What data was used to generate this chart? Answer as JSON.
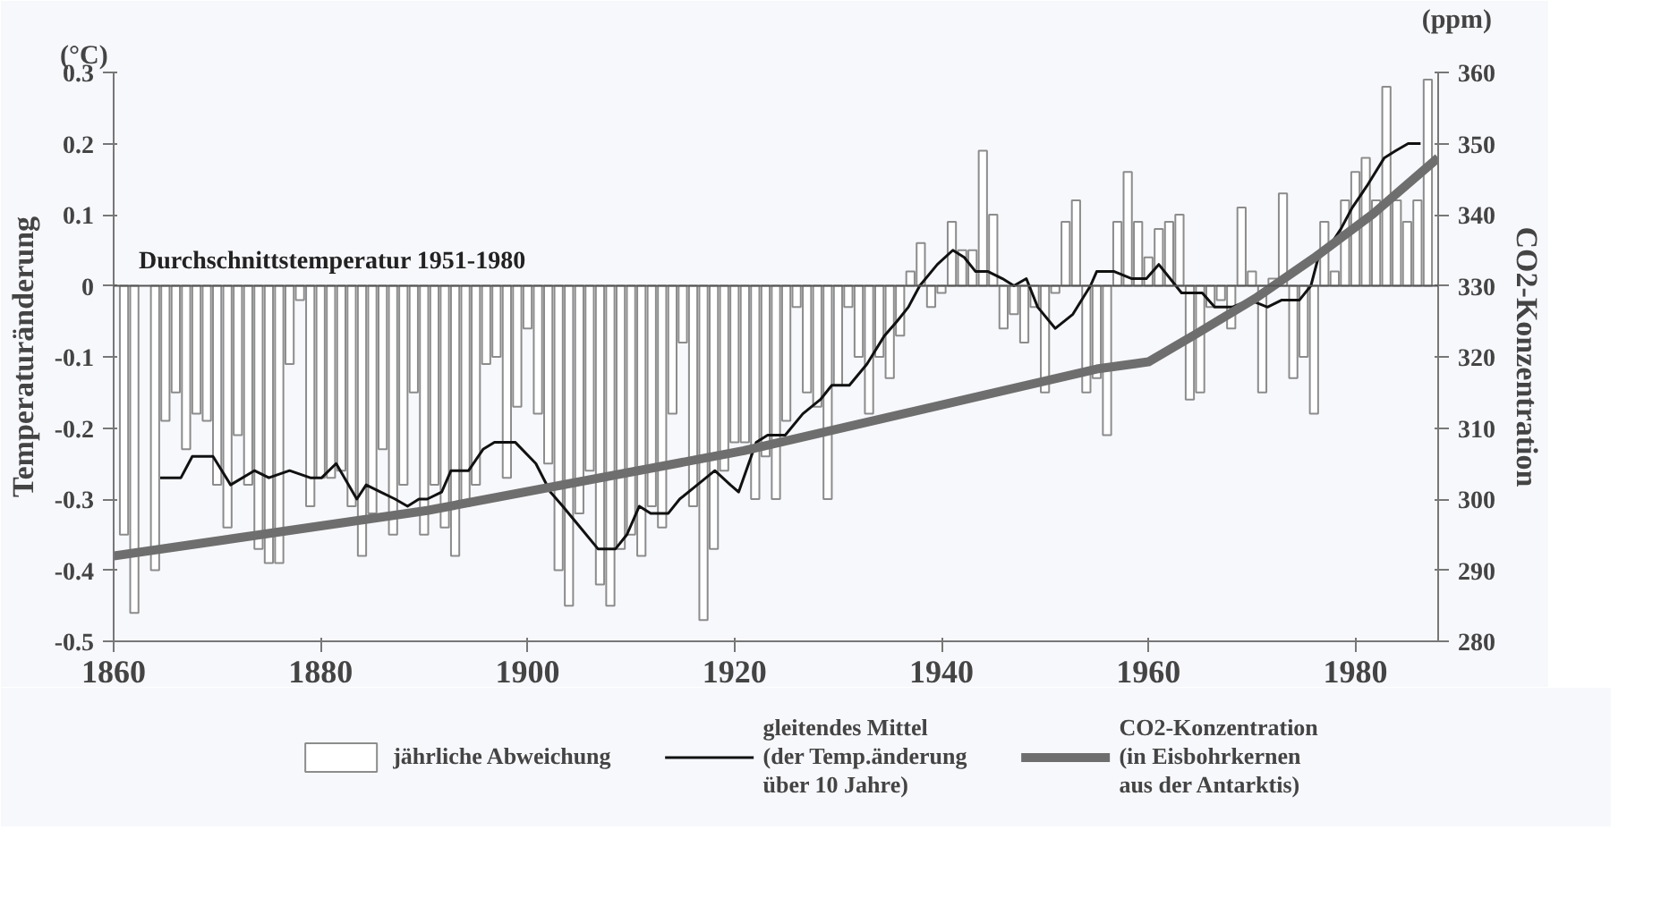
{
  "chart_data": {
    "type": "bar",
    "x": [
      1861,
      1862,
      1863,
      1864,
      1865,
      1866,
      1867,
      1868,
      1869,
      1870,
      1871,
      1872,
      1873,
      1874,
      1875,
      1876,
      1877,
      1878,
      1879,
      1880,
      1881,
      1882,
      1883,
      1884,
      1885,
      1886,
      1887,
      1888,
      1889,
      1890,
      1891,
      1892,
      1893,
      1894,
      1895,
      1896,
      1897,
      1898,
      1899,
      1900,
      1901,
      1902,
      1903,
      1904,
      1905,
      1906,
      1907,
      1908,
      1909,
      1910,
      1911,
      1912,
      1913,
      1914,
      1915,
      1916,
      1917,
      1918,
      1919,
      1920,
      1921,
      1922,
      1923,
      1924,
      1925,
      1926,
      1927,
      1928,
      1929,
      1930,
      1931,
      1932,
      1933,
      1934,
      1935,
      1936,
      1937,
      1938,
      1939,
      1940,
      1941,
      1942,
      1943,
      1944,
      1945,
      1946,
      1947,
      1948,
      1949,
      1950,
      1951,
      1952,
      1953,
      1954,
      1955,
      1956,
      1957,
      1958,
      1959,
      1960,
      1961,
      1962,
      1963,
      1964,
      1965,
      1966,
      1967,
      1968,
      1969,
      1970,
      1971,
      1972,
      1973,
      1974,
      1975,
      1976,
      1977,
      1978,
      1979,
      1980,
      1981,
      1982,
      1983,
      1984,
      1985,
      1986,
      1987
    ],
    "series": [
      {
        "name": "jährliche Abweichung",
        "color": "#8c8c8c",
        "values": [
          -0.35,
          -0.46,
          null,
          -0.4,
          -0.19,
          -0.15,
          -0.23,
          -0.18,
          -0.19,
          -0.28,
          -0.34,
          -0.21,
          -0.28,
          -0.37,
          -0.39,
          -0.39,
          -0.11,
          -0.02,
          -0.31,
          -0.27,
          -0.27,
          -0.26,
          -0.31,
          -0.38,
          -0.32,
          -0.23,
          -0.35,
          -0.28,
          -0.15,
          -0.35,
          -0.28,
          -0.34,
          -0.38,
          -0.31,
          -0.28,
          -0.11,
          -0.1,
          -0.27,
          -0.17,
          -0.06,
          -0.18,
          -0.25,
          -0.4,
          -0.45,
          -0.32,
          -0.26,
          -0.42,
          -0.45,
          -0.37,
          -0.35,
          -0.38,
          -0.31,
          -0.34,
          -0.18,
          -0.08,
          -0.31,
          -0.47,
          -0.37,
          -0.26,
          -0.22,
          -0.22,
          -0.3,
          -0.24,
          -0.3,
          -0.19,
          -0.03,
          -0.15,
          -0.17,
          -0.3,
          -0.14,
          -0.03,
          -0.1,
          -0.18,
          -0.1,
          -0.13,
          -0.07,
          0.02,
          0.06,
          -0.03,
          -0.01,
          0.09,
          0.05,
          0.05,
          0.19,
          0.1,
          -0.06,
          -0.04,
          -0.08,
          -0.03,
          -0.15,
          -0.01,
          0.09,
          0.12,
          -0.15,
          -0.13,
          -0.21,
          0.09,
          0.16,
          0.09,
          0.04,
          0.08,
          0.09,
          0.1,
          -0.16,
          -0.15,
          -0.03,
          -0.02,
          -0.06,
          0.11,
          0.02,
          -0.15,
          0.01,
          0.13,
          -0.13,
          -0.1,
          -0.18,
          0.09,
          0.02,
          0.12,
          0.16,
          0.18,
          0.12,
          0.28,
          0.12,
          0.09,
          0.12,
          0.29
        ]
      },
      {
        "name": "gleitendes Mittel\n(der Temp.änderung\nüber 10 Jahre)",
        "type": "line",
        "color": "#111111",
        "x": [
          1864.5,
          1866.5,
          1867.6,
          1869.6,
          1871.3,
          1873.6,
          1875,
          1877,
          1879,
          1880.1,
          1881.5,
          1883.5,
          1884.4,
          1885.8,
          1887.2,
          1888.4,
          1889.5,
          1890.3,
          1891.7,
          1892.6,
          1894.3,
          1895.7,
          1896.8,
          1898.8,
          1900.8,
          1902.2,
          1903.4,
          1905.1,
          1906.8,
          1908.5,
          1909.6,
          1910.8,
          1911.9,
          1913.6,
          1914.7,
          1916.4,
          1918.1,
          1919.6,
          1920.4,
          1922.1,
          1923.2,
          1924.9,
          1926.6,
          1928.3,
          1929.4,
          1931.1,
          1932.8,
          1934.5,
          1935.7,
          1936.8,
          1937.9,
          1939.6,
          1941.1,
          1942.2,
          1943.3,
          1944.5,
          1945.9,
          1947.0,
          1948.2,
          1949.3,
          1951.0,
          1952.7,
          1954.4,
          1955.0,
          1956.7,
          1958.4,
          1959.8,
          1961.0,
          1962.1,
          1963.2,
          1965.2,
          1966.4,
          1968.1,
          1969.8,
          1971.5,
          1972.9,
          1974.6,
          1975.7,
          1976.6,
          1977.7,
          1978.6,
          1979.7,
          1981.1,
          1982.8,
          1983.9,
          1985.1,
          1986.3
        ],
        "values": [
          -0.27,
          -0.27,
          -0.24,
          -0.24,
          -0.28,
          -0.26,
          -0.27,
          -0.26,
          -0.27,
          -0.27,
          -0.25,
          -0.3,
          -0.28,
          -0.29,
          -0.3,
          -0.31,
          -0.3,
          -0.3,
          -0.29,
          -0.26,
          -0.26,
          -0.23,
          -0.22,
          -0.22,
          -0.25,
          -0.29,
          -0.31,
          -0.34,
          -0.37,
          -0.37,
          -0.35,
          -0.31,
          -0.32,
          -0.32,
          -0.3,
          -0.28,
          -0.26,
          -0.28,
          -0.29,
          -0.22,
          -0.21,
          -0.21,
          -0.18,
          -0.16,
          -0.14,
          -0.14,
          -0.11,
          -0.07,
          -0.05,
          -0.03,
          0.0,
          0.03,
          0.05,
          0.04,
          0.02,
          0.02,
          0.01,
          0.0,
          0.01,
          -0.03,
          -0.06,
          -0.04,
          0.0,
          0.02,
          0.02,
          0.01,
          0.01,
          0.03,
          0.01,
          -0.01,
          -0.01,
          -0.03,
          -0.03,
          -0.02,
          -0.03,
          -0.02,
          -0.02,
          0.0,
          0.05,
          0.06,
          0.08,
          0.11,
          0.14,
          0.18,
          0.19,
          0.2,
          0.2
        ]
      },
      {
        "name": "CO2-Konzentration\n(in Eisbohrkernen\naus der Antarktis)",
        "type": "line",
        "axis": "y2",
        "color": "#6e6e6e",
        "x": [
          1860,
          1890.3,
          1920.9,
          1955,
          1960,
          1964.7,
          1970.3,
          1976,
          1981.7,
          1988
        ],
        "values": [
          292,
          298.4,
          306.8,
          318.3,
          319.3,
          323.3,
          328.2,
          333.9,
          340.1,
          348
        ]
      }
    ],
    "xlim": [
      1860,
      1988
    ],
    "xticks": [
      1860,
      1880,
      1900,
      1920,
      1940,
      1960,
      1980
    ],
    "ylim": [
      -0.5,
      0.3
    ],
    "yticks": [
      -0.5,
      -0.4,
      -0.3,
      -0.2,
      -0.1,
      0,
      0.1,
      0.2,
      0.3
    ],
    "y2lim": [
      280,
      360
    ],
    "y2ticks": [
      280,
      290,
      300,
      310,
      320,
      330,
      340,
      350,
      360
    ],
    "ylabel": "Temperaturänderung",
    "y2label": "CO2-Konzentration",
    "annotations": [
      "(°C)",
      "(ppm)"
    ],
    "ref_lines": [
      {
        "axis": "y",
        "value": 0,
        "label": "Durchschnittstemperatur 1951-1980",
        "color": "#555555"
      }
    ],
    "legend": "bottom",
    "grid": false
  }
}
